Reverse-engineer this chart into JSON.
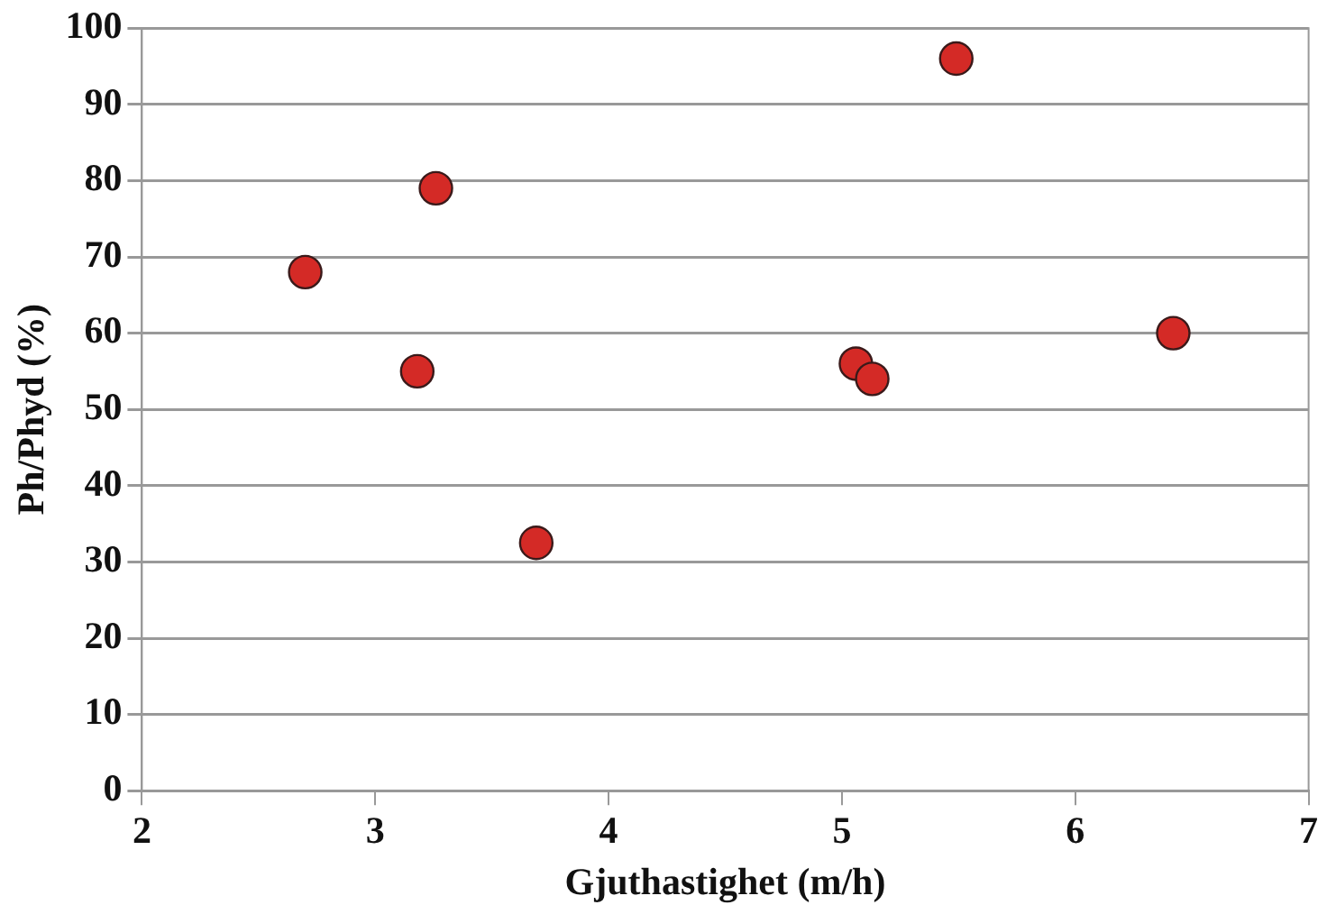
{
  "chart_data": {
    "type": "scatter",
    "xlabel": "Gjuthastighet (m/h)",
    "ylabel": "Ph/Phyd (%)",
    "x": [
      2.7,
      3.26,
      3.18,
      3.69,
      5.06,
      5.13,
      5.49,
      6.42
    ],
    "series": [
      {
        "color": "#d42a26",
        "values": [
          68,
          79,
          55,
          32.5,
          56,
          54,
          96,
          60
        ]
      }
    ],
    "xlim": [
      2,
      7
    ],
    "xticks": [
      2,
      3,
      4,
      5,
      6,
      7
    ],
    "ylim": [
      0,
      100
    ],
    "yticks": [
      0,
      10,
      20,
      30,
      40,
      50,
      60,
      70,
      80,
      90,
      100
    ],
    "grid": "y",
    "legend": false,
    "marker": "circle"
  }
}
